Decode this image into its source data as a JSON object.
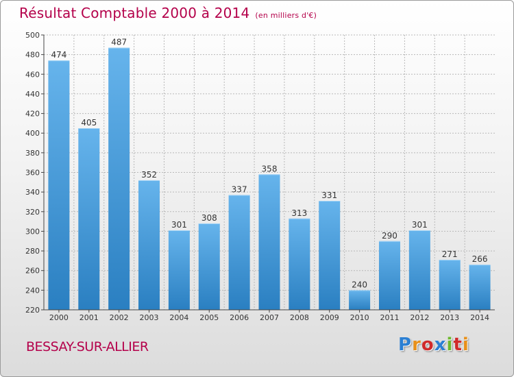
{
  "header": {
    "title": "Résultat Comptable 2000 à 2014",
    "subtitle": "(en milliers d'€)"
  },
  "footer": {
    "town": "BESSAY-SUR-ALLIER",
    "logo_text": "Proxiti",
    "logo_colors": [
      "#2b7fd3",
      "#e8901a",
      "#d02a2a",
      "#2b7fd3",
      "#6cb82c",
      "#d02a2a",
      "#e8901a"
    ]
  },
  "colors": {
    "bar_light": "#66b4ec",
    "bar_dark": "#2a7fc1",
    "axis": "#444444",
    "grid": "#b8b8b8"
  },
  "chart_data": {
    "type": "bar",
    "title": "Résultat Comptable 2000 à 2014",
    "subtitle": "(en milliers d'€)",
    "categories": [
      "2000",
      "2001",
      "2002",
      "2003",
      "2004",
      "2005",
      "2006",
      "2007",
      "2008",
      "2009",
      "2010",
      "2011",
      "2012",
      "2013",
      "2014"
    ],
    "values": [
      474,
      405,
      487,
      352,
      301,
      308,
      337,
      358,
      313,
      331,
      240,
      290,
      301,
      271,
      266
    ],
    "ylim": [
      220,
      500
    ],
    "yticks": [
      220,
      240,
      260,
      280,
      300,
      320,
      340,
      360,
      380,
      400,
      420,
      440,
      460,
      480,
      500
    ],
    "xlabel": "",
    "ylabel": "",
    "grid": true
  }
}
